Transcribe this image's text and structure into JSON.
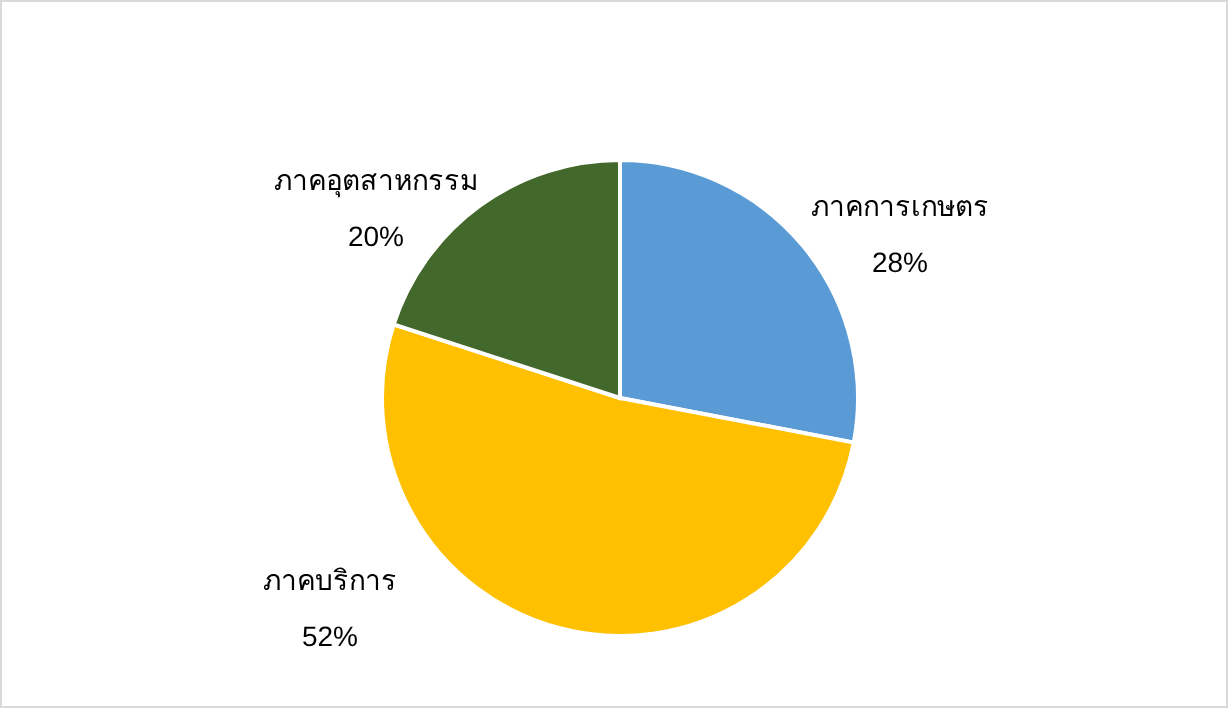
{
  "chart_data": {
    "type": "pie",
    "categories": [
      "ภาคการเกษตร",
      "ภาคบริการ",
      "ภาคอุตสาหกรรม"
    ],
    "values": [
      28,
      52,
      20
    ],
    "colors": [
      "#5b9bd5",
      "#ffc000",
      "#43682b"
    ],
    "value_labels": [
      "28%",
      "52%",
      "20%"
    ]
  }
}
